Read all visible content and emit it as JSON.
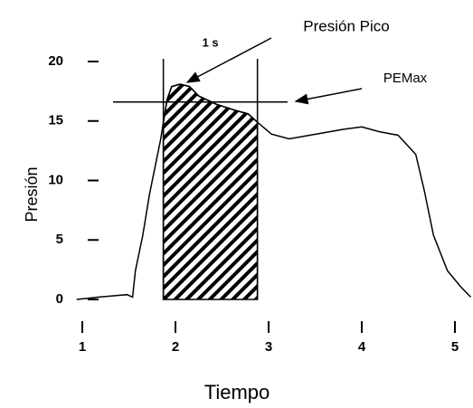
{
  "chart_data": {
    "type": "line",
    "x_label": "Tiempo",
    "y_label": "Presión",
    "xlim": [
      0.9,
      5.2
    ],
    "xticks": [
      1,
      2,
      3,
      4,
      5
    ],
    "ylim": [
      0,
      20
    ],
    "yticks": [
      0,
      5,
      10,
      15,
      20
    ],
    "series": [
      {
        "name": "Presión",
        "color": "#000000",
        "x": [
          0.94,
          1.18,
          1.48,
          1.54,
          1.57,
          1.65,
          1.72,
          1.79,
          1.84,
          1.91,
          1.96,
          2.05,
          2.15,
          2.25,
          2.44,
          2.64,
          2.78,
          2.88,
          3.03,
          3.22,
          3.51,
          3.8,
          4.0,
          4.19,
          4.39,
          4.58,
          4.67,
          4.77,
          4.92,
          5.07,
          5.17
        ],
        "values": [
          0,
          0.2,
          0.4,
          0.2,
          2.4,
          5.4,
          8.8,
          11.5,
          13.4,
          16.8,
          17.9,
          18.1,
          17.9,
          17.1,
          16.4,
          15.9,
          15.6,
          14.9,
          13.9,
          13.5,
          13.9,
          14.3,
          14.5,
          14.1,
          13.8,
          12.2,
          9.2,
          5.4,
          2.4,
          1.0,
          0.2
        ]
      }
    ],
    "window": {
      "start": 1.87,
      "end": 2.88,
      "label": "1 s"
    },
    "pemax": {
      "value": 16.6,
      "label": "PEMax"
    },
    "peak_label": "Presión Pico"
  }
}
